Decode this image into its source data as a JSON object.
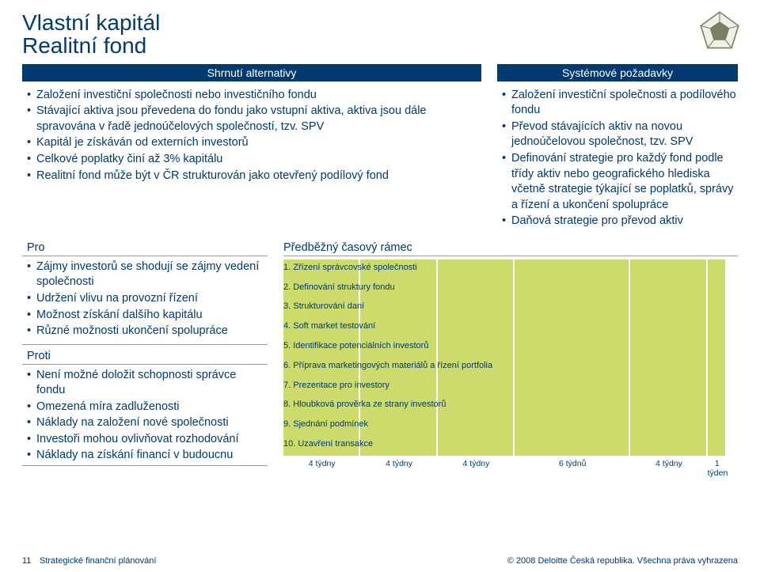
{
  "title": {
    "line1": "Vlastní kapitál",
    "line2": "Realitní fond"
  },
  "headers": {
    "summary": "Shrnutí alternativy",
    "requirements": "Systémové požadavky",
    "pro": "Pro",
    "con": "Proti",
    "timeline": "Předběžný časový rámec"
  },
  "summary_bullets": [
    "Založení investiční společnosti nebo investičního fondu",
    "Stávající aktiva jsou převedena do fondu jako vstupní aktiva, aktiva jsou dále spravována v řadě jednoúčelových společností, tzv. SPV",
    "Kapitál je získáván od externích investorů",
    "Celkové poplatky činí až 3% kapitálu",
    "Realitní fond může být v ČR strukturován jako otevřený podílový fond"
  ],
  "requirements_bullets": [
    "Založení investiční společnosti a podílového fondu",
    "Převod stávajících aktiv na novou jednoúčelovou společnost, tzv. SPV",
    "Definování strategie pro každý fond podle třídy aktiv nebo geografického hlediska včetně strategie týkající se poplatků, správy a řízení a ukončení spolupráce",
    "Daňová strategie pro převod aktiv"
  ],
  "pro_bullets": [
    "Zájmy investorů se shodují se zájmy vedení společnosti",
    "Udržení vlivu na provozní řízení",
    "Možnost získání dalšího kapitálu",
    "Různé možnosti ukončení spolupráce"
  ],
  "con_bullets": [
    "Není možné doložit schopnosti správce fondu",
    "Omezená míra zadluženosti",
    "Náklady na založení nové společnosti",
    "Investoři mohou ovlivňovat rozhodování",
    "Náklady na získání financí v budoucnu"
  ],
  "timeline": {
    "bar_color": "#b7cc2c",
    "total_units": 23,
    "periods": [
      {
        "label": "4 týdny",
        "units": 4
      },
      {
        "label": "4 týdny",
        "units": 4
      },
      {
        "label": "4 týdny",
        "units": 4
      },
      {
        "label": "6 týdnů",
        "units": 6
      },
      {
        "label": "4 týdny",
        "units": 4
      },
      {
        "label": "1 týden",
        "units": 1
      }
    ],
    "steps": [
      {
        "n": "1.",
        "label": "Zřízení správcovské společnosti"
      },
      {
        "n": "2.",
        "label": "Definování struktury fondu"
      },
      {
        "n": "3.",
        "label": "Strukturování daní"
      },
      {
        "n": "4.",
        "label": "Soft market testování"
      },
      {
        "n": "5.",
        "label": "Identifikace potenciálních investorů"
      },
      {
        "n": "6.",
        "label": "Příprava marketingových materiálů a řízení portfolia"
      },
      {
        "n": "7.",
        "label": "Prezentace pro investory"
      },
      {
        "n": "8.",
        "label": "Hloubková prověrka ze strany investorů"
      },
      {
        "n": "9.",
        "label": "Sjednání podmínek"
      },
      {
        "n": "10.",
        "label": "Uzavření transakce"
      }
    ]
  },
  "footer": {
    "page": "11",
    "title": "Strategické finanční plánování",
    "copyright": "© 2008 Deloitte Česká republika. Všechna práva vyhrazena"
  },
  "colors": {
    "brand": "#003a70",
    "accent": "#b7cc2c"
  }
}
